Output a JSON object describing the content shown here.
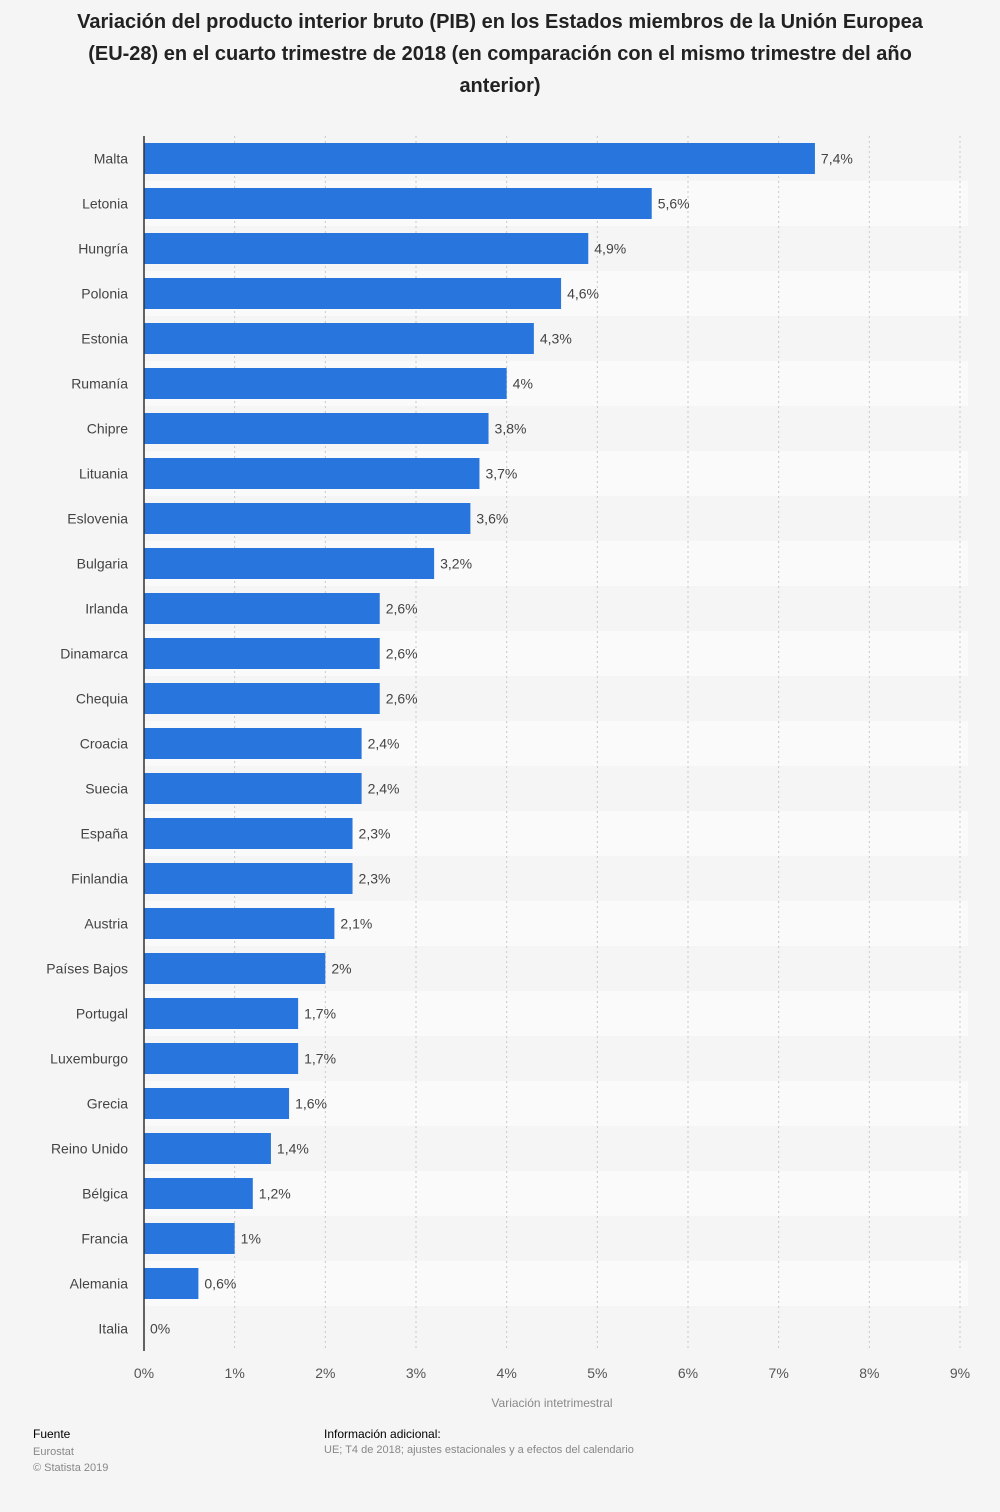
{
  "title": "Variación del producto interior bruto (PIB) en los Estados miembros de la Unión Europea (EU-28) en el cuarto trimestre de 2018 (en comparación con el mismo trimestre del año anterior)",
  "footer": {
    "source_heading": "Fuente",
    "source_name": "Eurostat",
    "copyright": "© Statista 2019",
    "info_heading": "Información adicional:",
    "info_text": "UE; T4 de 2018; ajustes estacionales y a efectos del calendario"
  },
  "colors": {
    "bar": "#2876dd",
    "stripe": "#ebebeb",
    "background": "#f5f5f5"
  },
  "chart_data": {
    "type": "bar",
    "orientation": "horizontal",
    "categories": [
      "Malta",
      "Letonia",
      "Hungría",
      "Polonia",
      "Estonia",
      "Rumanía",
      "Chipre",
      "Lituania",
      "Eslovenia",
      "Bulgaria",
      "Irlanda",
      "Dinamarca",
      "Chequia",
      "Croacia",
      "Suecia",
      "España",
      "Finlandia",
      "Austria",
      "Países Bajos",
      "Portugal",
      "Luxemburgo",
      "Grecia",
      "Reino Unido",
      "Bélgica",
      "Francia",
      "Alemania",
      "Italia"
    ],
    "values": [
      7.4,
      5.6,
      4.9,
      4.6,
      4.3,
      4.0,
      3.8,
      3.7,
      3.6,
      3.2,
      2.6,
      2.6,
      2.6,
      2.4,
      2.4,
      2.3,
      2.3,
      2.1,
      2.0,
      1.7,
      1.7,
      1.6,
      1.4,
      1.2,
      1.0,
      0.6,
      0.0
    ],
    "value_labels": [
      "7,4%",
      "5,6%",
      "4,9%",
      "4,6%",
      "4,3%",
      "4%",
      "3,8%",
      "3,7%",
      "3,6%",
      "3,2%",
      "2,6%",
      "2,6%",
      "2,6%",
      "2,4%",
      "2,4%",
      "2,3%",
      "2,3%",
      "2,1%",
      "2%",
      "1,7%",
      "1,7%",
      "1,6%",
      "1,4%",
      "1,2%",
      "1%",
      "0,6%",
      "0%"
    ],
    "x_ticks": [
      0,
      1,
      2,
      3,
      4,
      5,
      6,
      7,
      8,
      9
    ],
    "x_tick_labels": [
      "0%",
      "1%",
      "2%",
      "3%",
      "4%",
      "5%",
      "6%",
      "7%",
      "8%",
      "9%"
    ],
    "xlim": [
      0,
      9
    ],
    "xlabel": "Variación intetrimestral",
    "ylabel": "",
    "grid": true,
    "legend": "none"
  }
}
